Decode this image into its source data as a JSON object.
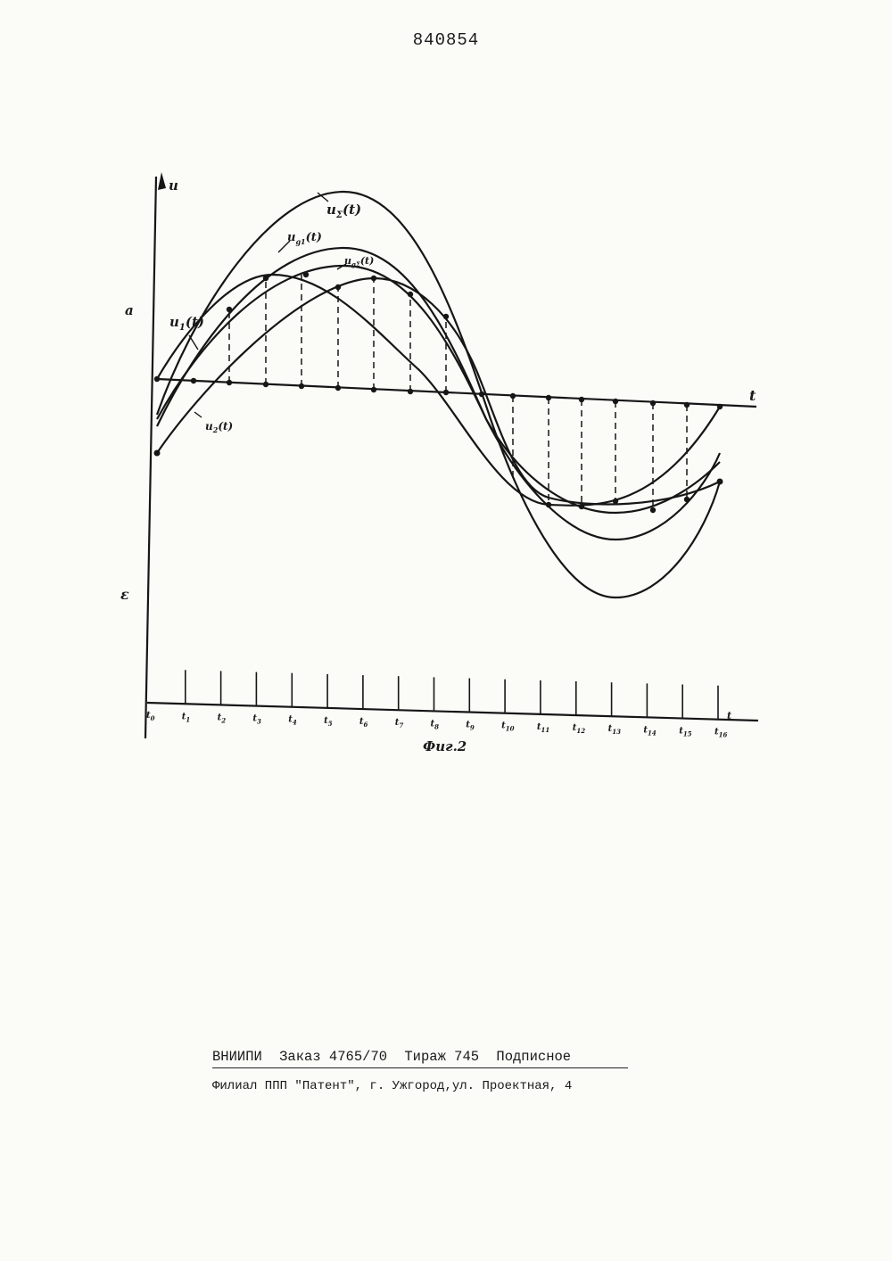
{
  "page_number": "840854",
  "figure": {
    "caption": "Фиг.2",
    "axis_u": "u",
    "axis_t": "t",
    "label_a": "a",
    "label_epsilon": "ε",
    "curves": [
      {
        "label_main": "u",
        "label_sub": "Σ",
        "label_tail": "(t)"
      },
      {
        "label_main": "u",
        "label_sub": "g1",
        "label_tail": "(t)"
      },
      {
        "label_main": "u",
        "label_sub": "gΣ",
        "label_tail": "(t)"
      },
      {
        "label_main": "u",
        "label_sub": "1",
        "label_tail": "(t)"
      },
      {
        "label_main": "u",
        "label_sub": "2",
        "label_tail": "(t)"
      }
    ],
    "time_labels": [
      {
        "main": "t",
        "sub": "0"
      },
      {
        "main": "t",
        "sub": "1"
      },
      {
        "main": "t",
        "sub": "2"
      },
      {
        "main": "t",
        "sub": "3"
      },
      {
        "main": "t",
        "sub": "4"
      },
      {
        "main": "t",
        "sub": "5"
      },
      {
        "main": "t",
        "sub": "6"
      },
      {
        "main": "t",
        "sub": "7"
      },
      {
        "main": "t",
        "sub": "8"
      },
      {
        "main": "t",
        "sub": "9"
      },
      {
        "main": "t",
        "sub": "10"
      },
      {
        "main": "t",
        "sub": "11"
      },
      {
        "main": "t",
        "sub": "12"
      },
      {
        "main": "t",
        "sub": "13"
      },
      {
        "main": "t",
        "sub": "14"
      },
      {
        "main": "t",
        "sub": "15"
      },
      {
        "main": "t",
        "sub": "16"
      }
    ]
  },
  "imprint": {
    "org": "ВНИИПИ",
    "order": "Заказ 4765/70",
    "run": "Тираж 745",
    "subscription": "Подписное",
    "branch": "Филиал ППП \"Патент\", г. Ужгород,ул. Проектная, 4"
  }
}
